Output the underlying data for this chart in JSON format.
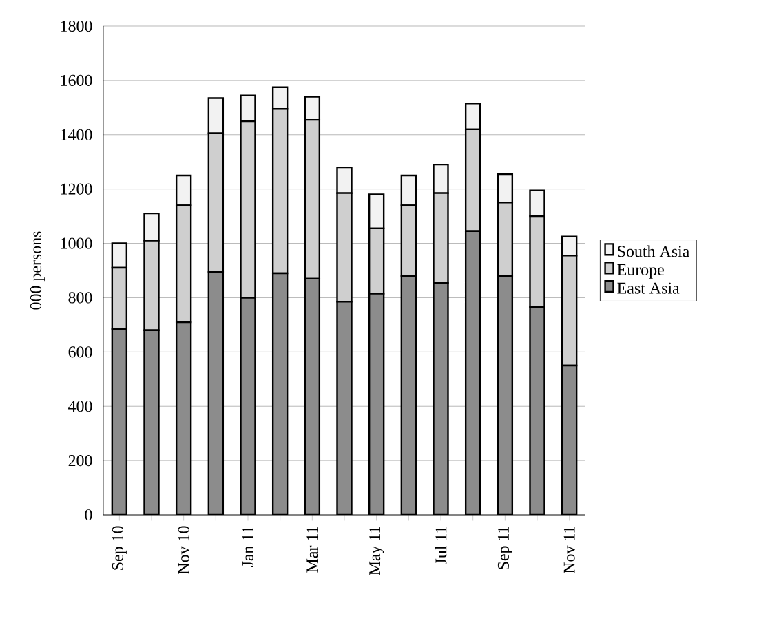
{
  "chart_data": {
    "type": "bar",
    "stacked": true,
    "ylabel": "000 persons",
    "categories": [
      "Sep 10",
      null,
      "Nov 10",
      null,
      "Jan 11",
      null,
      "Mar 11",
      null,
      "May 11",
      null,
      "Jul 11",
      null,
      "Sep 11",
      null,
      "Nov 11"
    ],
    "series": [
      {
        "name": "East Asia",
        "color": "#8c8c8c",
        "values": [
          685,
          680,
          710,
          895,
          800,
          890,
          870,
          785,
          815,
          880,
          855,
          1045,
          880,
          765,
          550
        ]
      },
      {
        "name": "Europe",
        "color": "#cfcfcf",
        "values": [
          225,
          330,
          430,
          510,
          650,
          605,
          585,
          400,
          240,
          260,
          330,
          375,
          270,
          335,
          405
        ]
      },
      {
        "name": "South Asia",
        "color": "#f2f2f2",
        "values": [
          90,
          100,
          110,
          130,
          95,
          80,
          85,
          95,
          125,
          110,
          105,
          95,
          105,
          95,
          70
        ]
      }
    ],
    "ylim": [
      0,
      1800
    ],
    "yticks": [
      0,
      200,
      400,
      600,
      800,
      1000,
      1200,
      1400,
      1600,
      1800
    ],
    "grid": "y",
    "legend": "right"
  }
}
